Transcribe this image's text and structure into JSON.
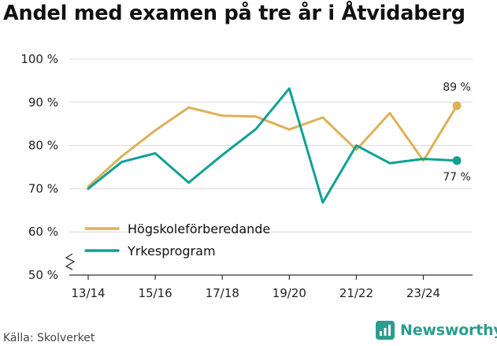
{
  "header": {
    "title": "Andel med examen på tre år i Åtvidaberg"
  },
  "footer": {
    "source": "Källa: Skolverket",
    "brand": "Newsworthy"
  },
  "colors": {
    "series1": "#ddb158",
    "series2": "#0fa195",
    "grid": "#d9d9d9",
    "axis": "#333333"
  },
  "chart_data": {
    "type": "line",
    "title": "Andel med examen på tre år i Åtvidaberg",
    "xlabel": "",
    "ylabel": "",
    "ylim": [
      50,
      100
    ],
    "yticks": [
      50,
      60,
      70,
      80,
      90,
      100
    ],
    "ytick_labels": [
      "50 %",
      "60 %",
      "70 %",
      "80 %",
      "90 %",
      "100 %"
    ],
    "y_axis_break": true,
    "categories": [
      "13/14",
      "14/15",
      "15/16",
      "16/17",
      "17/18",
      "18/19",
      "19/20",
      "20/21",
      "21/22",
      "22/23",
      "23/24",
      "24/25"
    ],
    "xtick_labels": [
      "13/14",
      "15/16",
      "17/18",
      "19/20",
      "21/22",
      "23/24"
    ],
    "grid": true,
    "legend_position": "bottom-left",
    "series": [
      {
        "name": "Högskoleförberedande",
        "values": [
          70.5,
          77.5,
          83.5,
          88.8,
          86.9,
          86.7,
          83.7,
          86.5,
          79.0,
          87.5,
          76.5,
          89.2
        ],
        "end_label": "89 %"
      },
      {
        "name": "Yrkesprogram",
        "values": [
          70.0,
          76.2,
          78.2,
          71.4,
          77.8,
          83.8,
          93.2,
          66.8,
          80.0,
          75.9,
          76.9,
          76.5
        ],
        "end_label": "77 %"
      }
    ]
  }
}
